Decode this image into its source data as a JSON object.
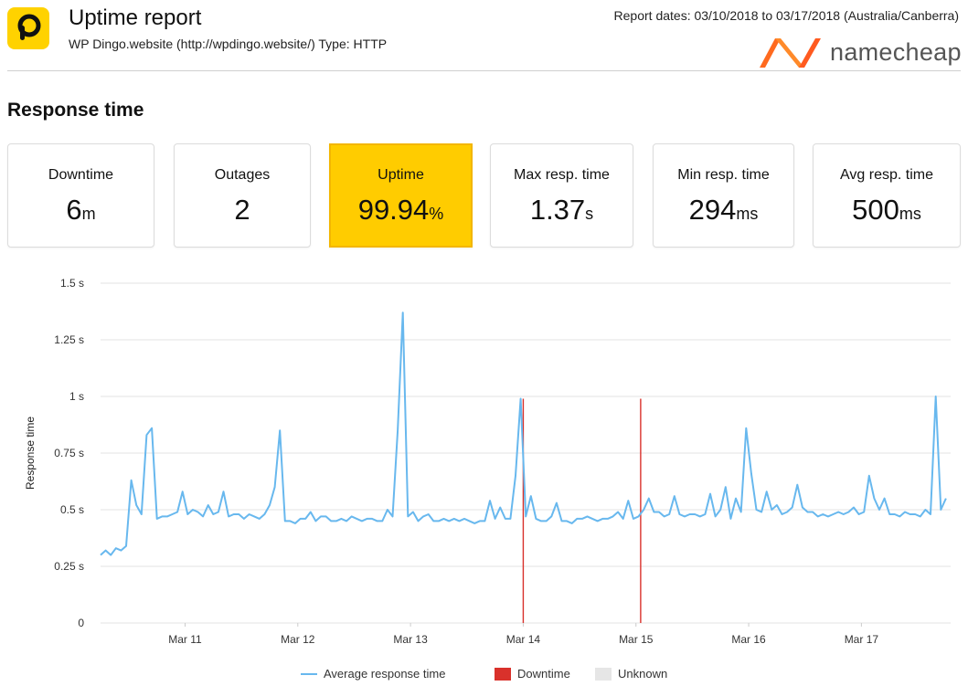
{
  "header": {
    "title": "Uptime report",
    "subtitle": "WP Dingo.website (http://wpdingo.website/) Type: HTTP",
    "report_dates": "Report dates: 03/10/2018 to 03/17/2018 (Australia/Canberra)",
    "app_logo_letter": "P",
    "brand_name": "namecheap"
  },
  "colors": {
    "accent_yellow": "#ffcc00",
    "line": "#68b8ee",
    "downtime": "#d9312b",
    "unknown": "#e6e6e6",
    "brand_orange": "#ff5a1f"
  },
  "section_title": "Response time",
  "stats": [
    {
      "label": "Downtime",
      "value": "6",
      "unit": "m"
    },
    {
      "label": "Outages",
      "value": "2",
      "unit": ""
    },
    {
      "label": "Uptime",
      "value": "99.94",
      "unit": "%"
    },
    {
      "label": "Max resp. time",
      "value": "1.37",
      "unit": "s"
    },
    {
      "label": "Min resp. time",
      "value": "294",
      "unit": "ms"
    },
    {
      "label": "Avg resp. time",
      "value": "500",
      "unit": "ms"
    }
  ],
  "legend": {
    "avg": "Average response time",
    "downtime": "Downtime",
    "unknown": "Unknown"
  },
  "chart_data": {
    "type": "line",
    "ylabel": "Response time",
    "ylim": [
      0,
      1.5
    ],
    "yticks": [
      0,
      0.25,
      0.5,
      0.75,
      1,
      1.25,
      1.5
    ],
    "ytick_labels": [
      "0",
      "0.25 s",
      "0.5 s",
      "0.75 s",
      "1 s",
      "1.25 s",
      "1.5 s"
    ],
    "xlim": [
      "2018-03-10 06:00",
      "2018-03-17 19:00"
    ],
    "xticks": [
      "2018-03-11",
      "2018-03-12",
      "2018-03-13",
      "2018-03-14",
      "2018-03-15",
      "2018-03-16",
      "2018-03-17"
    ],
    "xtick_labels": [
      "Mar 11",
      "Mar 12",
      "Mar 13",
      "Mar 14",
      "Mar 15",
      "Mar 16",
      "Mar 17"
    ],
    "series": [
      {
        "name": "Average response time",
        "x_start": "2018-03-10 06:00",
        "x_end": "2018-03-17 18:00",
        "values": [
          0.3,
          0.32,
          0.3,
          0.33,
          0.32,
          0.34,
          0.63,
          0.52,
          0.48,
          0.83,
          0.86,
          0.46,
          0.47,
          0.47,
          0.48,
          0.49,
          0.58,
          0.48,
          0.5,
          0.49,
          0.47,
          0.52,
          0.48,
          0.49,
          0.58,
          0.47,
          0.48,
          0.48,
          0.46,
          0.48,
          0.47,
          0.46,
          0.48,
          0.52,
          0.6,
          0.85,
          0.45,
          0.45,
          0.44,
          0.46,
          0.46,
          0.49,
          0.45,
          0.47,
          0.47,
          0.45,
          0.45,
          0.46,
          0.45,
          0.47,
          0.46,
          0.45,
          0.46,
          0.46,
          0.45,
          0.45,
          0.5,
          0.47,
          0.85,
          1.37,
          0.47,
          0.49,
          0.45,
          0.47,
          0.48,
          0.45,
          0.45,
          0.46,
          0.45,
          0.46,
          0.45,
          0.46,
          0.45,
          0.44,
          0.45,
          0.45,
          0.54,
          0.46,
          0.51,
          0.46,
          0.46,
          0.65,
          0.99,
          0.47,
          0.56,
          0.46,
          0.45,
          0.45,
          0.47,
          0.53,
          0.45,
          0.45,
          0.44,
          0.46,
          0.46,
          0.47,
          0.46,
          0.45,
          0.46,
          0.46,
          0.47,
          0.49,
          0.46,
          0.54,
          0.46,
          0.47,
          0.5,
          0.55,
          0.49,
          0.49,
          0.47,
          0.48,
          0.56,
          0.48,
          0.47,
          0.48,
          0.48,
          0.47,
          0.48,
          0.57,
          0.47,
          0.5,
          0.6,
          0.46,
          0.55,
          0.49,
          0.86,
          0.66,
          0.5,
          0.49,
          0.58,
          0.5,
          0.52,
          0.48,
          0.49,
          0.51,
          0.61,
          0.51,
          0.49,
          0.49,
          0.47,
          0.48,
          0.47,
          0.48,
          0.49,
          0.48,
          0.49,
          0.51,
          0.48,
          0.49,
          0.65,
          0.55,
          0.5,
          0.55,
          0.48,
          0.48,
          0.47,
          0.49,
          0.48,
          0.48,
          0.47,
          0.5,
          0.48,
          1.0,
          0.5,
          0.55
        ]
      }
    ],
    "downtime_events": [
      "2018-03-14 00:00",
      "2018-03-15 01:00"
    ],
    "grid": "horizontal",
    "legend_position": "bottom"
  }
}
